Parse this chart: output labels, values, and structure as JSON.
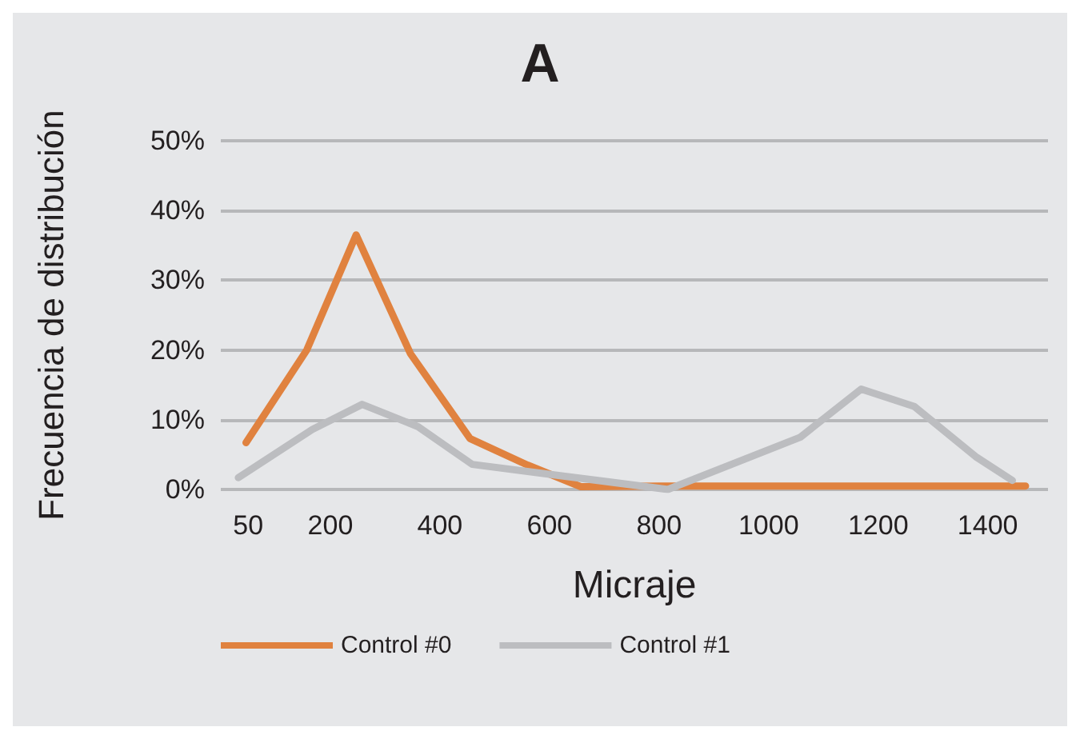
{
  "chart_data": {
    "type": "line",
    "title": "A",
    "xlabel": "Micraje",
    "ylabel": "Frecuencia de distribución",
    "xlim": [
      0,
      1510
    ],
    "xticks": [
      50,
      200,
      400,
      600,
      800,
      1000,
      1200,
      1400
    ],
    "ylim": [
      0,
      50
    ],
    "yticks": [
      {
        "value": 0,
        "label": "0%"
      },
      {
        "value": 10,
        "label": "10%"
      },
      {
        "value": 20,
        "label": "20%"
      },
      {
        "value": 30,
        "label": "30%"
      },
      {
        "value": 40,
        "label": "40%"
      },
      {
        "value": 50,
        "label": "50%"
      }
    ],
    "series": [
      {
        "name": "Control #0",
        "color": "#e0823f",
        "x": [
          46,
          157,
          247,
          346,
          455,
          560,
          657,
          800,
          1469
        ],
        "values": [
          6.7,
          20,
          36.5,
          19.5,
          7.3,
          3.5,
          0.4,
          0.5,
          0.5
        ]
      },
      {
        "name": "Control #1",
        "color": "#bcbdc0",
        "x": [
          32,
          167,
          258,
          360,
          459,
          628,
          816,
          1058,
          1169,
          1266,
          1380,
          1445
        ],
        "values": [
          1.7,
          8.6,
          12.2,
          9,
          3.6,
          1.9,
          0,
          7.5,
          14.4,
          11.9,
          4.6,
          1.3
        ]
      }
    ],
    "grid": "y",
    "legend": "bottom left",
    "marker": "none",
    "line_style": "solid"
  }
}
